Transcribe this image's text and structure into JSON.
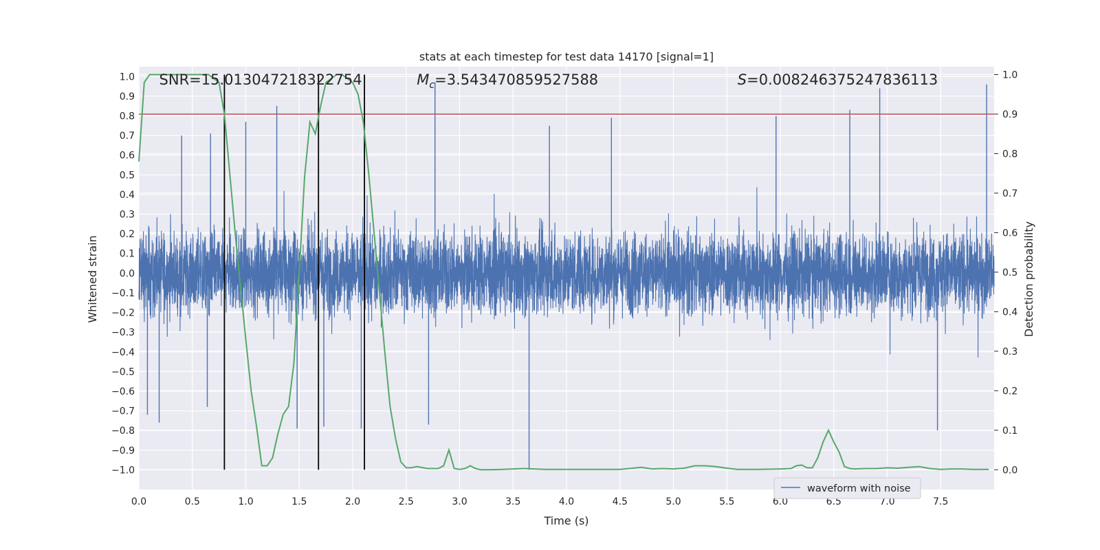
{
  "chart_data": {
    "type": "line",
    "title": "stats at each timestep for test data 14170 [signal=1]",
    "xlabel": "Time (s)",
    "ylabel_left": "Whitened strain",
    "ylabel_right": "Detection probability",
    "xlim": [
      0.0,
      8.0
    ],
    "ylim_left": [
      -1.1,
      1.05
    ],
    "ylim_right": [
      -0.05,
      1.02
    ],
    "x_ticks": [
      0.0,
      0.5,
      1.0,
      1.5,
      2.0,
      2.5,
      3.0,
      3.5,
      4.0,
      4.5,
      5.0,
      5.5,
      6.0,
      6.5,
      7.0,
      7.5
    ],
    "x_tick_labels": [
      "0.0",
      "0.5",
      "1.0",
      "1.5",
      "2.0",
      "2.5",
      "3.0",
      "3.5",
      "4.0",
      "4.5",
      "5.0",
      "5.5",
      "6.0",
      "6.5",
      "7.0",
      "7.5"
    ],
    "y_left_ticks": [
      1.0,
      0.9,
      0.8,
      0.7,
      0.6,
      0.5,
      0.4,
      0.3,
      0.2,
      0.1,
      0.0,
      -0.1,
      -0.2,
      -0.3,
      -0.4,
      -0.5,
      -0.6,
      -0.7,
      -0.8,
      -0.9,
      -1.0
    ],
    "y_left_tick_labels": [
      "1.0",
      "0.9",
      "0.8",
      "0.7",
      "0.6",
      "0.5",
      "0.4",
      "0.3",
      "0.2",
      "0.1",
      "0.0",
      "−0.1",
      "−0.2",
      "−0.3",
      "−0.4",
      "−0.5",
      "−0.6",
      "−0.7",
      "−0.8",
      "−0.9",
      "−1.0"
    ],
    "y_right_ticks": [
      1.0,
      0.9,
      0.8,
      0.7,
      0.6,
      0.5,
      0.4,
      0.3,
      0.2,
      0.1,
      0.0
    ],
    "y_right_tick_labels": [
      "1.0",
      "0.9",
      "0.8",
      "0.7",
      "0.6",
      "0.5",
      "0.4",
      "0.3",
      "0.2",
      "0.1",
      "0.0"
    ],
    "series": [
      {
        "name": "waveform with noise",
        "axis": "left",
        "color": "#4c72b0",
        "kind": "dense-noise",
        "duration_s": 8.0,
        "typical_amplitude_range": [
          -0.35,
          0.35
        ],
        "peak_spikes": [
          {
            "x": 0.4,
            "y": 0.7
          },
          {
            "x": 0.67,
            "y": 0.71
          },
          {
            "x": 1.0,
            "y": 0.77
          },
          {
            "x": 1.29,
            "y": 0.85
          },
          {
            "x": 2.77,
            "y": 0.97
          },
          {
            "x": 3.84,
            "y": 0.75
          },
          {
            "x": 4.42,
            "y": 0.79
          },
          {
            "x": 5.96,
            "y": 0.8
          },
          {
            "x": 6.65,
            "y": 0.83
          },
          {
            "x": 6.93,
            "y": 0.94
          },
          {
            "x": 7.93,
            "y": 0.96
          }
        ],
        "trough_spikes": [
          {
            "x": 0.08,
            "y": -0.72
          },
          {
            "x": 0.19,
            "y": -0.76
          },
          {
            "x": 0.64,
            "y": -0.68
          },
          {
            "x": 1.48,
            "y": -0.79
          },
          {
            "x": 1.73,
            "y": -0.78
          },
          {
            "x": 2.08,
            "y": -0.79
          },
          {
            "x": 2.71,
            "y": -0.77
          },
          {
            "x": 3.65,
            "y": -1.0
          },
          {
            "x": 7.47,
            "y": -0.8
          }
        ]
      },
      {
        "name": "detection probability",
        "axis": "right",
        "color": "#55a868",
        "x": [
          0.0,
          0.05,
          0.1,
          0.2,
          0.3,
          0.4,
          0.5,
          0.6,
          0.65,
          0.7,
          0.75,
          0.8,
          0.9,
          1.0,
          1.05,
          1.1,
          1.15,
          1.2,
          1.25,
          1.3,
          1.35,
          1.4,
          1.45,
          1.5,
          1.55,
          1.6,
          1.65,
          1.7,
          1.75,
          1.8,
          1.85,
          1.9,
          2.0,
          2.05,
          2.1,
          2.15,
          2.2,
          2.25,
          2.3,
          2.35,
          2.4,
          2.45,
          2.5,
          2.55,
          2.6,
          2.7,
          2.8,
          2.85,
          2.9,
          2.95,
          3.0,
          3.05,
          3.1,
          3.15,
          3.2,
          3.25,
          3.3,
          3.4,
          3.5,
          3.6,
          3.7,
          3.8,
          4.0,
          4.2,
          4.5,
          4.7,
          4.8,
          4.9,
          5.0,
          5.1,
          5.2,
          5.3,
          5.4,
          5.5,
          5.6,
          5.7,
          5.8,
          6.0,
          6.1,
          6.15,
          6.2,
          6.25,
          6.3,
          6.35,
          6.4,
          6.45,
          6.5,
          6.55,
          6.6,
          6.65,
          6.7,
          6.8,
          6.9,
          7.0,
          7.1,
          7.2,
          7.3,
          7.4,
          7.5,
          7.6,
          7.7,
          7.8,
          7.95
        ],
        "values": [
          0.78,
          0.98,
          1.0,
          1.0,
          1.0,
          1.0,
          1.0,
          1.0,
          1.0,
          0.99,
          0.98,
          0.9,
          0.6,
          0.33,
          0.2,
          0.11,
          0.01,
          0.01,
          0.03,
          0.09,
          0.14,
          0.16,
          0.27,
          0.5,
          0.74,
          0.88,
          0.85,
          0.92,
          0.98,
          0.99,
          1.0,
          1.0,
          0.98,
          0.95,
          0.88,
          0.75,
          0.6,
          0.45,
          0.3,
          0.16,
          0.08,
          0.02,
          0.005,
          0.005,
          0.008,
          0.003,
          0.003,
          0.01,
          0.05,
          0.003,
          0.001,
          0.003,
          0.01,
          0.003,
          0.0,
          0.0,
          0.0,
          0.001,
          0.002,
          0.003,
          0.002,
          0.001,
          0.001,
          0.001,
          0.001,
          0.006,
          0.002,
          0.003,
          0.002,
          0.004,
          0.01,
          0.01,
          0.008,
          0.004,
          0.001,
          0.001,
          0.001,
          0.002,
          0.003,
          0.01,
          0.012,
          0.005,
          0.005,
          0.03,
          0.07,
          0.1,
          0.07,
          0.045,
          0.008,
          0.003,
          0.002,
          0.003,
          0.003,
          0.005,
          0.004,
          0.006,
          0.008,
          0.003,
          0.001,
          0.002,
          0.002,
          0.001,
          0.001
        ]
      }
    ],
    "threshold_line": {
      "axis": "right",
      "y": 0.9,
      "color": "#c44e52"
    },
    "vertical_markers": {
      "x": [
        0.8,
        1.68,
        2.11
      ],
      "y_range_right": [
        0.0,
        1.0
      ],
      "color": "#000000"
    },
    "annotations": [
      {
        "text": "SNR=15.013047218322754",
        "x_data": 0.19
      },
      {
        "text": "M_c=3.543470859527588",
        "math_symbol": "M",
        "math_sub": "c",
        "value_text": "=3.543470859527588",
        "x_data": 2.6
      },
      {
        "text": "S=0.008246375247836113",
        "math_symbol": "S",
        "value_text": "=0.008246375247836113",
        "x_data": 5.6
      }
    ],
    "legend": {
      "entries": [
        "waveform with noise"
      ],
      "placement": "lower-right"
    },
    "grid": true,
    "background_color": "#eaeaf2",
    "grid_color": "#ffffff"
  }
}
